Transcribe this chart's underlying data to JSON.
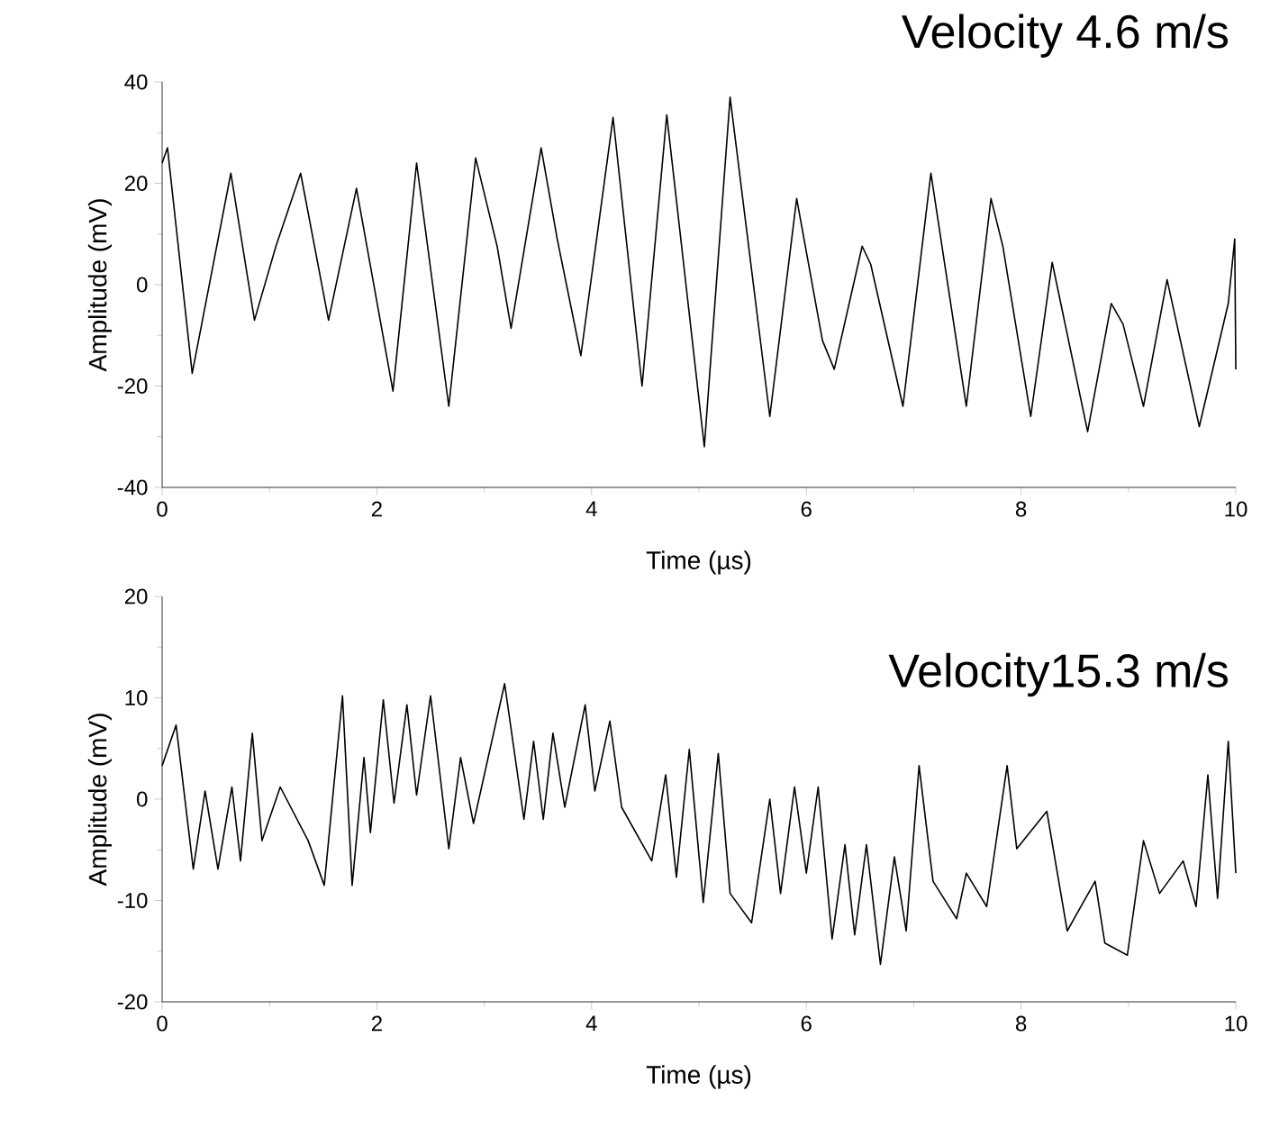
{
  "chart_data": [
    {
      "type": "line",
      "title": "Velocity 4.6 m/s",
      "xlabel": "Time (µs)",
      "ylabel": "Amplitude (mV)",
      "color": "#000000",
      "xlim": [
        0,
        10
      ],
      "ylim": [
        -40,
        40
      ],
      "xticks": [
        0,
        2,
        4,
        6,
        8,
        10
      ],
      "yticks": [
        -40,
        -20,
        0,
        20,
        40
      ],
      "x": [
        0,
        0.05,
        0.28,
        0.64,
        0.86,
        1.06,
        1.29,
        1.55,
        1.81,
        2.15,
        2.37,
        2.67,
        2.92,
        3.12,
        3.25,
        3.53,
        3.68,
        3.9,
        4.2,
        4.47,
        4.7,
        5.05,
        5.29,
        5.66,
        5.91,
        6.15,
        6.26,
        6.52,
        6.6,
        6.9,
        7.16,
        7.49,
        7.72,
        7.83,
        8.09,
        8.29,
        8.62,
        8.84,
        8.95,
        9.14,
        9.36,
        9.66,
        9.93,
        9.99,
        10
      ],
      "values": [
        24,
        27,
        -17.5,
        22,
        -7,
        7.6,
        22,
        -7,
        19,
        -21,
        24,
        -24,
        25,
        7.6,
        -8.6,
        27,
        9,
        -14,
        33,
        -20,
        33.5,
        -32,
        37,
        -26,
        17,
        -11,
        -16.7,
        7.6,
        4,
        -24,
        22,
        -24,
        17,
        7.6,
        -26,
        4.4,
        -29,
        -3.7,
        -7.8,
        -24,
        1,
        -28,
        -3.7,
        9,
        -16.7
      ]
    },
    {
      "type": "line",
      "title": "Velocity15.3 m/s",
      "xlabel": "Time (µs)",
      "ylabel": "Amplitude (mV)",
      "color": "#000000",
      "xlim": [
        0,
        10
      ],
      "ylim": [
        -20,
        20
      ],
      "xticks": [
        0,
        2,
        4,
        6,
        8,
        10
      ],
      "yticks": [
        -20,
        -10,
        0,
        10,
        20
      ],
      "x": [
        0,
        0.13,
        0.29,
        0.4,
        0.52,
        0.65,
        0.73,
        0.84,
        0.93,
        1.1,
        1.36,
        1.51,
        1.68,
        1.77,
        1.88,
        1.94,
        2.06,
        2.16,
        2.28,
        2.37,
        2.5,
        2.67,
        2.78,
        2.9,
        3.19,
        3.37,
        3.46,
        3.55,
        3.64,
        3.75,
        3.94,
        4.03,
        4.17,
        4.28,
        4.56,
        4.69,
        4.79,
        4.91,
        5.04,
        5.18,
        5.29,
        5.49,
        5.66,
        5.76,
        5.89,
        6.0,
        6.11,
        6.24,
        6.36,
        6.45,
        6.56,
        6.69,
        6.82,
        6.93,
        7.05,
        7.18,
        7.4,
        7.49,
        7.68,
        7.87,
        7.96,
        8.24,
        8.43,
        8.69,
        8.78,
        8.99,
        9.14,
        9.29,
        9.51,
        9.63,
        9.74,
        9.83,
        9.93,
        10
      ],
      "values": [
        3.3,
        7.3,
        -6.9,
        0.8,
        -6.9,
        1.2,
        -6.1,
        6.5,
        -4.1,
        1.2,
        -4.1,
        -8.5,
        10.2,
        -8.5,
        4.1,
        -3.3,
        9.8,
        -0.4,
        9.3,
        0.4,
        10.2,
        -4.9,
        4.1,
        -2.4,
        11.4,
        -2,
        5.7,
        -2,
        6.5,
        -0.8,
        9.3,
        0.8,
        7.7,
        -0.8,
        -6.1,
        2.4,
        -7.7,
        4.9,
        -10.2,
        4.5,
        -9.3,
        -12.2,
        0,
        -9.3,
        1.2,
        -7.3,
        1.2,
        -13.8,
        -4.5,
        -13.4,
        -4.5,
        -16.3,
        -5.7,
        -13,
        3.3,
        -8.1,
        -11.8,
        -7.3,
        -10.6,
        3.3,
        -4.9,
        -1.2,
        -13,
        -8.1,
        -14.2,
        -15.4,
        -4.1,
        -9.3,
        -6.1,
        -10.6,
        2.4,
        -9.8,
        5.7,
        -7.3
      ]
    }
  ]
}
